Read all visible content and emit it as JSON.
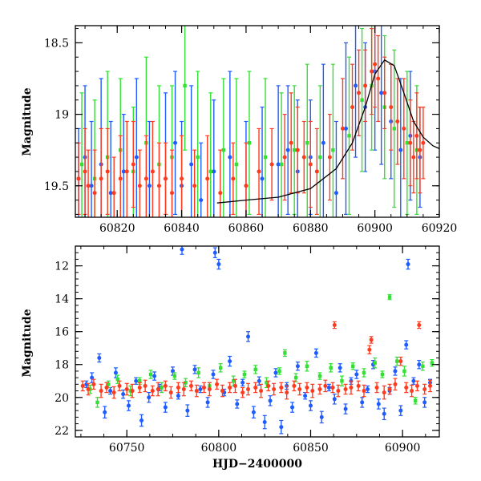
{
  "chart_data": [
    {
      "panel": "top",
      "type": "scatter",
      "title": "",
      "xlabel": "",
      "ylabel": "Magnitude",
      "xlim": [
        60807,
        60920
      ],
      "ylim": [
        19.72,
        18.38
      ],
      "y_inverted": true,
      "x_ticks": [
        60820,
        60840,
        60860,
        60880,
        60900,
        60920
      ],
      "x_tick_labels": [
        "60820",
        "60840",
        "60860",
        "60880",
        "60900",
        "60920"
      ],
      "y_ticks": [
        18.5,
        19,
        19.5
      ],
      "y_tick_labels": [
        "18.5",
        "19",
        "19.5"
      ],
      "grid": false,
      "legend": "none",
      "series": [
        {
          "color": "#1f5cff",
          "marker": "circle",
          "x": [
            60808,
            60810,
            60812,
            60815,
            60818,
            60822,
            60826,
            60830,
            60835,
            60838,
            60840,
            60843,
            60846,
            60850,
            60855,
            60860,
            60865,
            60870,
            60873,
            60876,
            60880,
            60884,
            60888,
            60891,
            60894,
            60897,
            60900,
            60902,
            60905,
            60908,
            60911,
            60914
          ],
          "y": [
            19.45,
            19.3,
            19.5,
            19.35,
            19.55,
            19.4,
            19.3,
            19.5,
            19.45,
            19.2,
            19.5,
            19.35,
            19.6,
            19.4,
            19.3,
            19.5,
            19.45,
            19.35,
            19.25,
            19.4,
            19.3,
            19.2,
            19.55,
            19.1,
            18.8,
            18.95,
            18.7,
            18.85,
            19.05,
            19.25,
            19.15,
            19.3
          ],
          "err": [
            0.35,
            0.5,
            0.45,
            0.6,
            0.5,
            0.4,
            0.55,
            0.45,
            0.6,
            0.5,
            0.45,
            0.55,
            0.4,
            0.5,
            0.6,
            0.45,
            0.5,
            0.55,
            0.45,
            0.5,
            0.4,
            0.55,
            0.5,
            0.6,
            0.5,
            0.45,
            0.55,
            0.5,
            0.4,
            0.5,
            0.45,
            0.35
          ]
        },
        {
          "color": "#33e033",
          "marker": "square",
          "x": [
            60809,
            60813,
            60817,
            60821,
            60825,
            60829,
            60833,
            60837,
            60841,
            60845,
            60849,
            60853,
            60857,
            60861,
            60866,
            60871,
            60875,
            60879,
            60883,
            60887,
            60892,
            60896,
            60899,
            60903,
            60906,
            60910,
            60913
          ],
          "y": [
            19.35,
            19.45,
            19.3,
            19.25,
            19.4,
            19.2,
            19.35,
            19.3,
            18.8,
            19.3,
            19.4,
            19.25,
            19.35,
            19.2,
            19.3,
            19.35,
            19.25,
            19.2,
            19.3,
            19.25,
            19.15,
            18.9,
            18.8,
            18.95,
            19.1,
            19.2,
            19.25
          ],
          "err": [
            0.5,
            0.55,
            0.6,
            0.5,
            0.45,
            0.6,
            0.55,
            0.5,
            0.45,
            0.6,
            0.55,
            0.5,
            0.6,
            0.5,
            0.55,
            0.5,
            0.45,
            0.55,
            0.5,
            0.6,
            0.55,
            0.5,
            0.45,
            0.5,
            0.55,
            0.5,
            0.45
          ]
        },
        {
          "color": "#ff3b1f",
          "marker": "circle",
          "x": [
            60808,
            60810,
            60811,
            60813,
            60815,
            60817,
            60819,
            60821,
            60823,
            60825,
            60827,
            60829,
            60831,
            60833,
            60835,
            60837,
            60840,
            60844,
            60848,
            60852,
            60856,
            60860,
            60864,
            60868,
            60872,
            60874,
            60876,
            60878,
            60880,
            60882,
            60886,
            60890,
            60893,
            60895,
            60897,
            60899,
            60900,
            60901,
            60903,
            60905,
            60907,
            60909,
            60911,
            60912,
            60913,
            60914,
            60915
          ],
          "y": [
            19.45,
            19.4,
            19.5,
            19.55,
            19.45,
            19.4,
            19.55,
            19.45,
            19.4,
            19.35,
            19.5,
            19.45,
            19.4,
            19.5,
            19.45,
            19.55,
            19.45,
            19.5,
            19.45,
            19.55,
            19.45,
            19.5,
            19.4,
            19.35,
            19.3,
            19.2,
            19.25,
            19.3,
            19.35,
            19.4,
            19.3,
            19.1,
            18.95,
            18.85,
            18.8,
            18.7,
            18.65,
            18.75,
            18.85,
            18.95,
            19.05,
            19.1,
            19.2,
            19.3,
            19.15,
            19.25,
            19.2
          ],
          "err": [
            0.25,
            0.3,
            0.25,
            0.3,
            0.35,
            0.3,
            0.25,
            0.3,
            0.35,
            0.3,
            0.25,
            0.3,
            0.35,
            0.3,
            0.25,
            0.3,
            0.3,
            0.25,
            0.3,
            0.3,
            0.25,
            0.3,
            0.3,
            0.25,
            0.3,
            0.35,
            0.3,
            0.25,
            0.3,
            0.3,
            0.3,
            0.35,
            0.3,
            0.3,
            0.25,
            0.3,
            0.3,
            0.3,
            0.25,
            0.3,
            0.3,
            0.35,
            0.3,
            0.25,
            0.3,
            0.3,
            0.25
          ]
        }
      ],
      "curve": {
        "color": "#000000",
        "x": [
          60851,
          60860,
          60870,
          60880,
          60888,
          60893,
          60897,
          60900,
          60903,
          60906,
          60909,
          60912,
          60915,
          60918,
          60920
        ],
        "y": [
          19.62,
          19.6,
          19.58,
          19.52,
          19.38,
          19.2,
          18.95,
          18.72,
          18.62,
          18.66,
          18.85,
          19.05,
          19.16,
          19.22,
          19.24
        ]
      }
    },
    {
      "panel": "bottom",
      "type": "scatter",
      "title": "",
      "xlabel": "HJD−2400000",
      "ylabel": "Magnitude",
      "xlim": [
        60722,
        60920
      ],
      "ylim": [
        22.4,
        10.8
      ],
      "y_inverted": true,
      "x_ticks": [
        60750,
        60800,
        60850,
        60900
      ],
      "x_tick_labels": [
        "60750",
        "60800",
        "60850",
        "60900"
      ],
      "y_ticks": [
        12,
        14,
        16,
        18,
        20,
        22
      ],
      "y_tick_labels": [
        "12",
        "14",
        "16",
        "18",
        "20",
        "22"
      ],
      "grid": false,
      "legend": "none",
      "series": [
        {
          "color": "#1f5cff",
          "marker": "circle",
          "x": [
            60728,
            60731,
            60735,
            60738,
            60741,
            60744,
            60748,
            60751,
            60755,
            60758,
            60762,
            60765,
            60768,
            60771,
            60775,
            60778,
            60780,
            60783,
            60787,
            60790,
            60794,
            60797,
            60798,
            60800,
            60803,
            60806,
            60810,
            60813,
            60816,
            60819,
            60822,
            60825,
            60828,
            60831,
            60834,
            60837,
            60840,
            60843,
            60847,
            60850,
            60853,
            60856,
            60860,
            60863,
            60866,
            60869,
            60872,
            60875,
            60878,
            60881,
            60884,
            60887,
            60890,
            60893,
            60896,
            60899,
            60902,
            60903,
            60906,
            60909,
            60912,
            60915
          ],
          "y": [
            19.2,
            18.8,
            17.6,
            20.9,
            19.6,
            18.5,
            19.8,
            20.5,
            19.0,
            21.4,
            20.0,
            18.7,
            19.4,
            20.6,
            18.4,
            19.9,
            11.0,
            20.8,
            18.3,
            19.5,
            20.3,
            18.6,
            11.2,
            11.9,
            19.7,
            17.8,
            20.4,
            19.1,
            16.3,
            20.9,
            19.0,
            21.5,
            20.2,
            18.5,
            21.8,
            19.3,
            20.6,
            18.1,
            19.9,
            20.5,
            17.3,
            21.2,
            19.4,
            20.1,
            18.2,
            20.7,
            19.0,
            18.6,
            20.3,
            19.5,
            18.0,
            20.4,
            21.0,
            19.6,
            18.4,
            20.8,
            16.8,
            11.9,
            19.0,
            18.0,
            20.3,
            19.1
          ],
          "err": [
            0.2,
            0.3,
            0.25,
            0.35,
            0.2,
            0.3,
            0.25,
            0.3,
            0.2,
            0.35,
            0.3,
            0.25,
            0.2,
            0.3,
            0.25,
            0.2,
            0.3,
            0.35,
            0.25,
            0.2,
            0.3,
            0.25,
            0.3,
            0.3,
            0.2,
            0.3,
            0.25,
            0.2,
            0.3,
            0.35,
            0.25,
            0.4,
            0.3,
            0.25,
            0.4,
            0.2,
            0.3,
            0.25,
            0.2,
            0.3,
            0.25,
            0.35,
            0.2,
            0.3,
            0.25,
            0.3,
            0.2,
            0.25,
            0.3,
            0.2,
            0.25,
            0.3,
            0.35,
            0.2,
            0.25,
            0.3,
            0.25,
            0.3,
            0.2,
            0.25,
            0.3,
            0.2
          ]
        },
        {
          "color": "#33e033",
          "marker": "square",
          "x": [
            60730,
            60734,
            60740,
            60745,
            60752,
            60757,
            60763,
            60769,
            60776,
            60782,
            60789,
            60795,
            60801,
            60808,
            60814,
            60820,
            60826,
            60833,
            60836,
            60842,
            60848,
            60855,
            60861,
            60867,
            60873,
            60879,
            60885,
            60889,
            60893,
            60897,
            60901,
            60907,
            60911,
            60916
          ],
          "y": [
            19.5,
            20.3,
            19.2,
            18.9,
            19.6,
            19.0,
            18.6,
            19.4,
            18.7,
            19.1,
            18.5,
            19.3,
            18.2,
            19.0,
            18.6,
            18.3,
            19.1,
            18.4,
            17.3,
            18.8,
            18.1,
            18.7,
            18.2,
            19.0,
            18.1,
            18.5,
            17.9,
            18.6,
            13.9,
            17.8,
            18.4,
            20.2,
            18.1,
            17.9
          ],
          "err": [
            0.25,
            0.3,
            0.2,
            0.25,
            0.3,
            0.2,
            0.25,
            0.3,
            0.2,
            0.25,
            0.3,
            0.2,
            0.25,
            0.3,
            0.2,
            0.25,
            0.3,
            0.2,
            0.2,
            0.25,
            0.3,
            0.2,
            0.25,
            0.3,
            0.2,
            0.25,
            0.3,
            0.2,
            0.15,
            0.25,
            0.3,
            0.2,
            0.25,
            0.2
          ]
        },
        {
          "color": "#ff3b1f",
          "marker": "circle",
          "x": [
            60726,
            60729,
            60732,
            60736,
            60739,
            60743,
            60746,
            60750,
            60753,
            60757,
            60760,
            60764,
            60767,
            60771,
            60774,
            60778,
            60781,
            60785,
            60788,
            60792,
            60795,
            60799,
            60802,
            60806,
            60809,
            60813,
            60816,
            60820,
            60823,
            60827,
            60830,
            60834,
            60837,
            60841,
            60844,
            60848,
            60851,
            60855,
            60858,
            60862,
            60863,
            60865,
            60869,
            60872,
            60876,
            60879,
            60882,
            60883,
            60886,
            60890,
            60893,
            60896,
            60899,
            60902,
            60905,
            60908,
            60909,
            60912,
            60915
          ],
          "y": [
            19.3,
            19.5,
            19.2,
            19.6,
            19.4,
            19.7,
            19.3,
            19.5,
            19.6,
            19.4,
            19.3,
            19.6,
            19.5,
            19.3,
            19.7,
            19.4,
            19.5,
            19.3,
            19.6,
            19.4,
            19.5,
            19.2,
            19.6,
            19.4,
            19.3,
            19.7,
            19.5,
            19.4,
            19.6,
            19.3,
            19.5,
            19.4,
            19.7,
            19.3,
            19.5,
            19.4,
            19.6,
            19.5,
            19.3,
            19.4,
            15.6,
            19.6,
            19.5,
            19.4,
            19.3,
            19.6,
            17.1,
            16.5,
            19.4,
            19.7,
            19.5,
            19.2,
            17.8,
            19.4,
            19.6,
            19.3,
            15.6,
            19.5,
            19.3
          ],
          "err": [
            0.3,
            0.35,
            0.3,
            0.4,
            0.3,
            0.35,
            0.3,
            0.35,
            0.4,
            0.3,
            0.35,
            0.3,
            0.4,
            0.3,
            0.35,
            0.3,
            0.4,
            0.3,
            0.35,
            0.3,
            0.4,
            0.3,
            0.35,
            0.3,
            0.4,
            0.3,
            0.35,
            0.3,
            0.4,
            0.3,
            0.35,
            0.3,
            0.4,
            0.3,
            0.35,
            0.3,
            0.4,
            0.3,
            0.35,
            0.3,
            0.2,
            0.35,
            0.3,
            0.4,
            0.3,
            0.35,
            0.25,
            0.2,
            0.3,
            0.4,
            0.3,
            0.35,
            0.25,
            0.3,
            0.35,
            0.3,
            0.2,
            0.3,
            0.35
          ]
        }
      ]
    }
  ]
}
